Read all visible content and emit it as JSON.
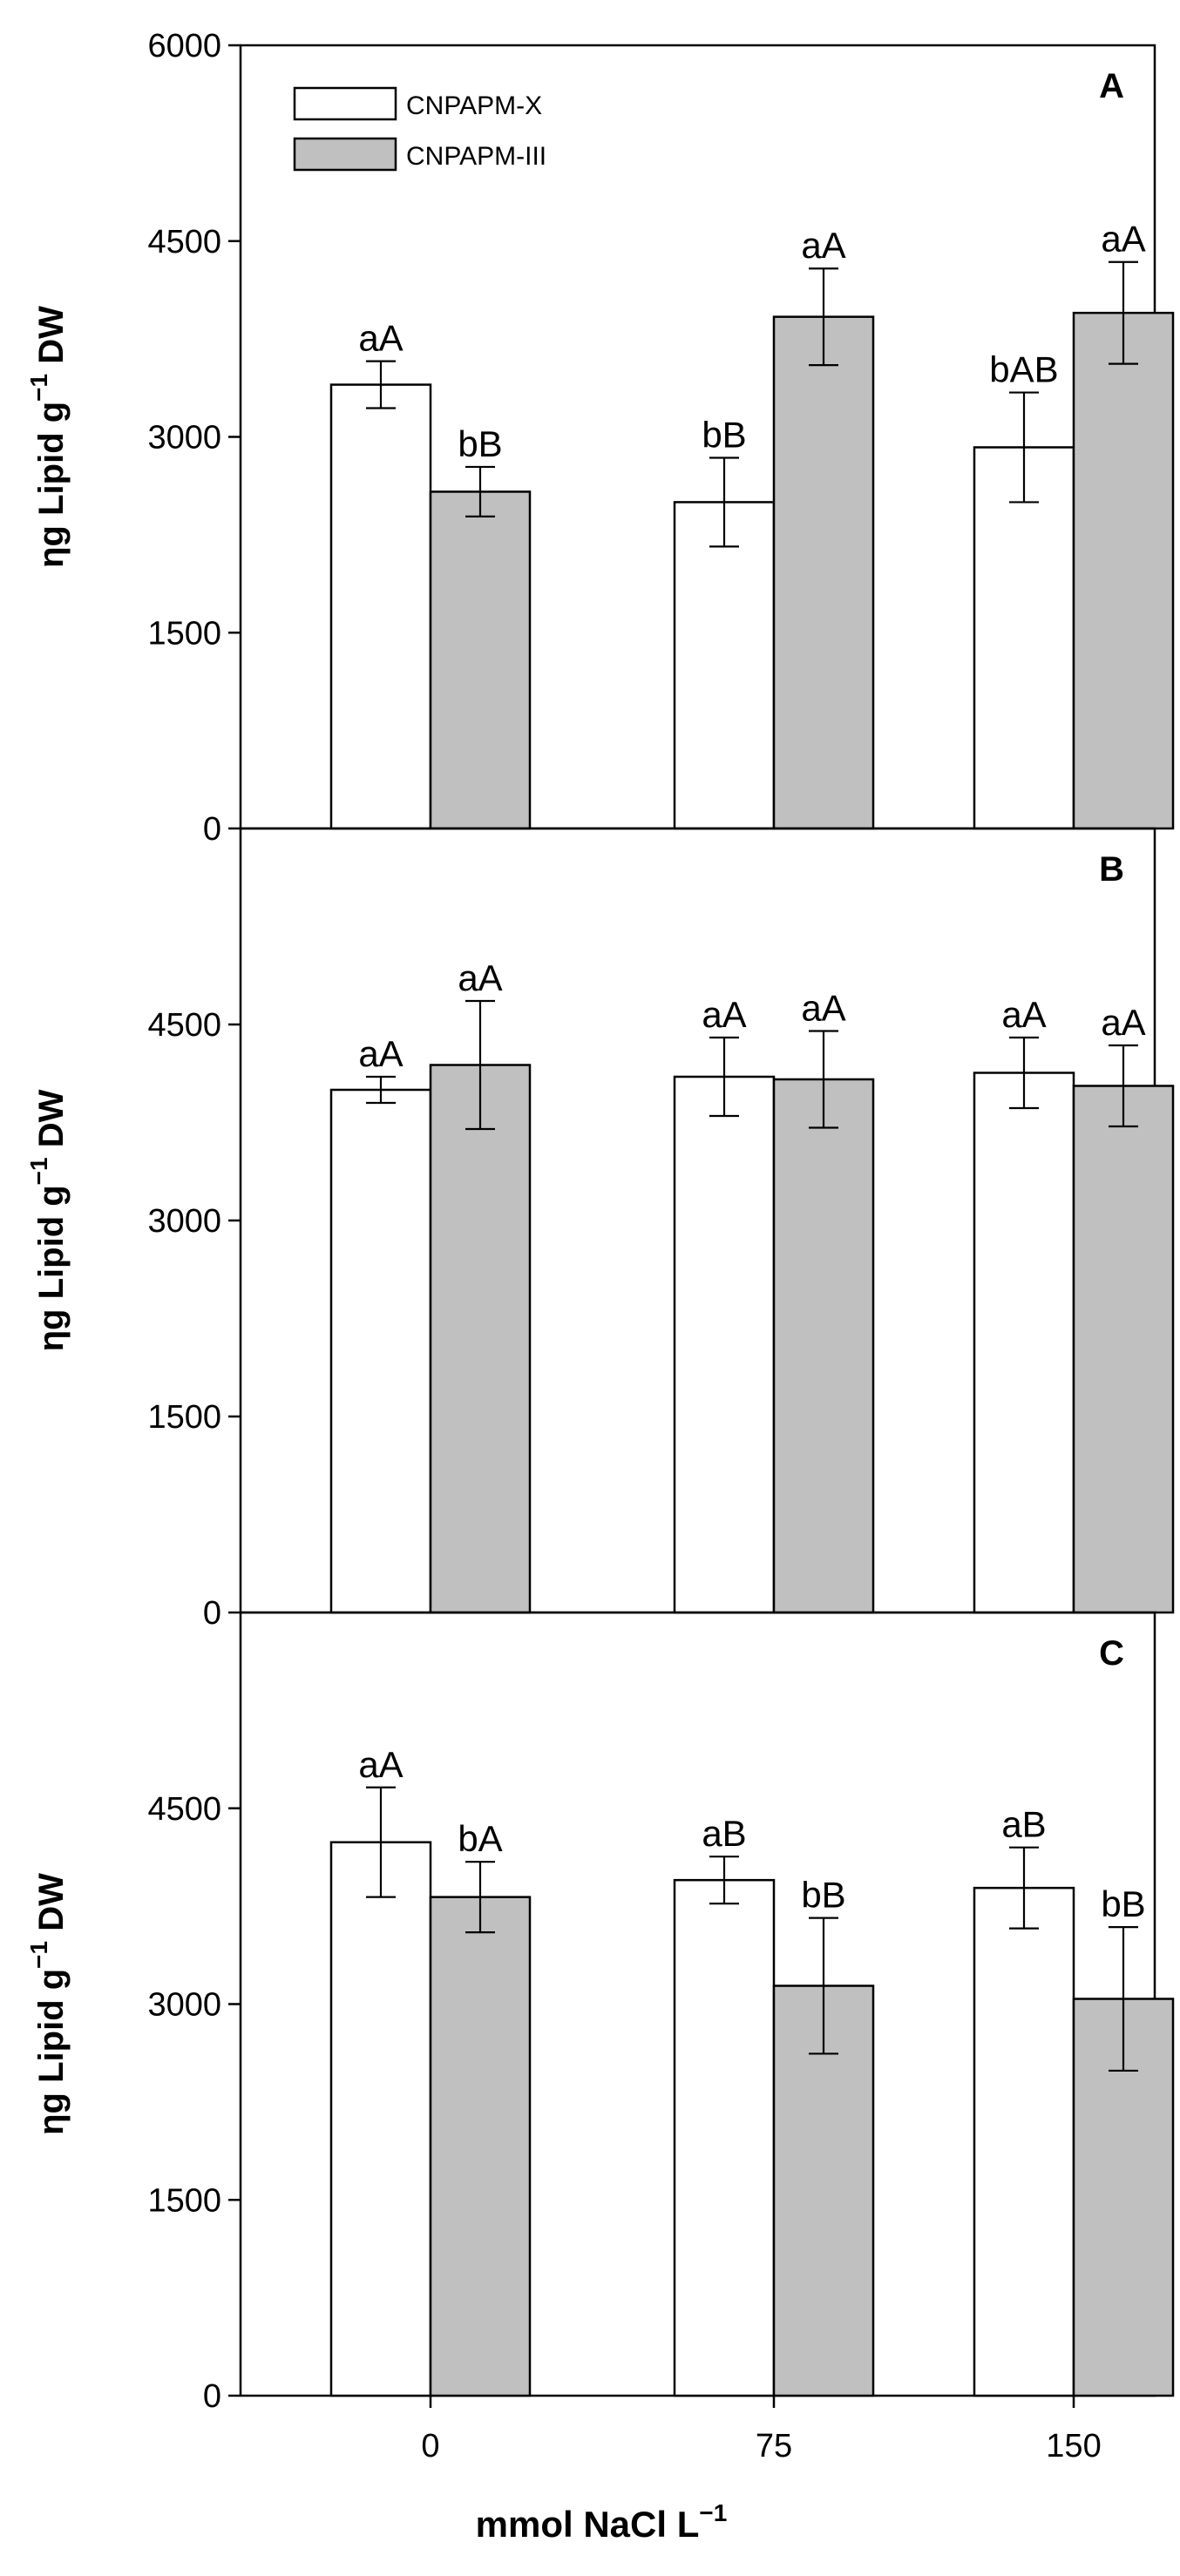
{
  "chart_data": {
    "type": "bar",
    "categories": [
      "0",
      "75",
      "150"
    ],
    "xlabel": "mmol NaCl L",
    "xlabel_superscript": "−1",
    "ylabel_prefix": "ηg Lipid g",
    "ylabel_superscript": "−1",
    "ylabel_suffix": " DW",
    "ylim": [
      0,
      6000
    ],
    "legend": {
      "placement": "top-left",
      "entries": [
        {
          "name": "CNPAPM-X",
          "color": "#ffffff"
        },
        {
          "name": "CNPAPM-III",
          "color": "#c0c0c0"
        }
      ]
    },
    "panels": [
      {
        "letter": "A",
        "yticks": [
          "0",
          "1500",
          "3000",
          "4500",
          "6000"
        ],
        "series": [
          {
            "name": "CNPAPM-X",
            "values": [
              3400,
              2500,
              2920
            ],
            "errors": [
              180,
              340,
              420
            ],
            "labels": [
              "aA",
              "bB",
              "bAB"
            ]
          },
          {
            "name": "CNPAPM-III",
            "values": [
              2580,
              3920,
              3950
            ],
            "errors": [
              190,
              370,
              390
            ],
            "labels": [
              "bB",
              "aA",
              "aA"
            ]
          }
        ]
      },
      {
        "letter": "B",
        "yticks": [
          "0",
          "1500",
          "3000",
          "4500"
        ],
        "series": [
          {
            "name": "CNPAPM-X",
            "values": [
              4000,
              4100,
              4130
            ],
            "errors": [
              100,
              300,
              270
            ],
            "labels": [
              "aA",
              "aA",
              "aA"
            ]
          },
          {
            "name": "CNPAPM-III",
            "values": [
              4190,
              4080,
              4030
            ],
            "errors": [
              490,
              370,
              310
            ],
            "labels": [
              "aA",
              "aA",
              "aA"
            ]
          }
        ]
      },
      {
        "letter": "C",
        "yticks": [
          "0",
          "1500",
          "3000",
          "4500"
        ],
        "series": [
          {
            "name": "CNPAPM-X",
            "values": [
              4240,
              3950,
              3890
            ],
            "errors": [
              420,
              180,
              310
            ],
            "labels": [
              "aA",
              "aB",
              "aB"
            ]
          },
          {
            "name": "CNPAPM-III",
            "values": [
              3820,
              3140,
              3040
            ],
            "errors": [
              270,
              520,
              550
            ],
            "labels": [
              "bA",
              "bB",
              "bB"
            ]
          }
        ]
      }
    ]
  }
}
